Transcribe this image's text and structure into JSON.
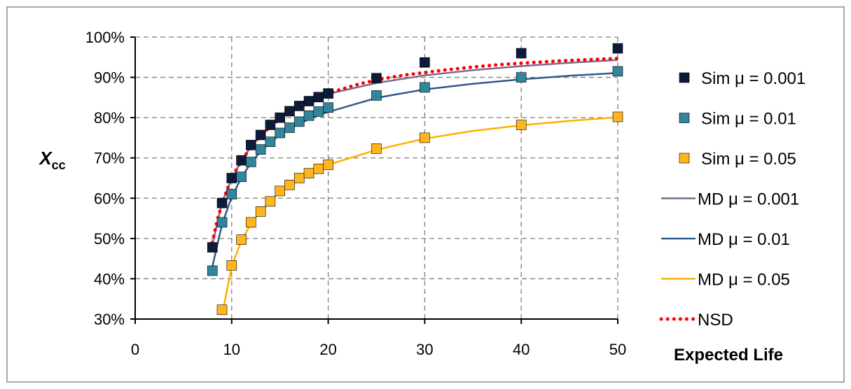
{
  "chart_data": {
    "type": "line",
    "title": "",
    "xlabel": "Expected Life",
    "ylabel": "X",
    "ylabel_subscript": "cc",
    "xlim": [
      0,
      50
    ],
    "ylim": [
      0.3,
      1.0
    ],
    "x_ticks": [
      0,
      10,
      20,
      30,
      40,
      50
    ],
    "y_ticks": [
      0.3,
      0.4,
      0.5,
      0.6,
      0.7,
      0.8,
      0.9,
      1.0
    ],
    "x_tick_labels": [
      "0",
      "10",
      "20",
      "30",
      "40",
      "50"
    ],
    "y_tick_labels": [
      "30%",
      "40%",
      "50%",
      "60%",
      "70%",
      "80%",
      "90%",
      "100%"
    ],
    "grid": true,
    "legend_position": "right",
    "series": [
      {
        "name": "Sim μ = 0.001",
        "kind": "marker",
        "color": "#0d1a3a",
        "x": [
          8,
          9,
          10,
          11,
          12,
          13,
          14,
          15,
          16,
          17,
          18,
          19,
          20,
          25,
          30,
          40,
          50
        ],
        "values": [
          0.478,
          0.588,
          0.65,
          0.694,
          0.732,
          0.757,
          0.782,
          0.8,
          0.816,
          0.829,
          0.841,
          0.851,
          0.86,
          0.898,
          0.937,
          0.96,
          0.972
        ]
      },
      {
        "name": "Sim μ = 0.01",
        "kind": "marker",
        "color": "#31859c",
        "x": [
          8,
          9,
          10,
          11,
          12,
          13,
          14,
          15,
          16,
          17,
          18,
          19,
          20,
          25,
          30,
          40,
          50
        ],
        "values": [
          0.42,
          0.54,
          0.61,
          0.653,
          0.69,
          0.721,
          0.74,
          0.762,
          0.775,
          0.79,
          0.805,
          0.815,
          0.825,
          0.855,
          0.875,
          0.9,
          0.915
        ]
      },
      {
        "name": "Sim μ = 0.05",
        "kind": "marker",
        "color": "#ffb51e",
        "x": [
          9,
          10,
          11,
          12,
          13,
          14,
          15,
          16,
          17,
          18,
          19,
          20,
          25,
          30,
          40,
          50
        ],
        "values": [
          0.323,
          0.433,
          0.497,
          0.54,
          0.567,
          0.592,
          0.618,
          0.633,
          0.65,
          0.662,
          0.673,
          0.683,
          0.723,
          0.75,
          0.782,
          0.802
        ]
      },
      {
        "name": "MD μ = 0.001",
        "kind": "line",
        "color": "#7a6a8e",
        "x": [
          8,
          9,
          10,
          11,
          12,
          13,
          14,
          15,
          16,
          17,
          18,
          19,
          20,
          25,
          30,
          35,
          40,
          45,
          50
        ],
        "values": [
          0.485,
          0.59,
          0.648,
          0.693,
          0.728,
          0.755,
          0.778,
          0.797,
          0.813,
          0.827,
          0.839,
          0.85,
          0.859,
          0.886,
          0.905,
          0.918,
          0.928,
          0.936,
          0.943
        ]
      },
      {
        "name": "MD μ = 0.01",
        "kind": "line",
        "color": "#2f5a8c",
        "x": [
          8,
          9,
          10,
          11,
          12,
          13,
          14,
          15,
          16,
          17,
          18,
          19,
          20,
          25,
          30,
          35,
          40,
          45,
          50
        ],
        "values": [
          0.43,
          0.535,
          0.603,
          0.651,
          0.688,
          0.716,
          0.739,
          0.757,
          0.772,
          0.785,
          0.796,
          0.806,
          0.814,
          0.849,
          0.87,
          0.884,
          0.895,
          0.904,
          0.911
        ]
      },
      {
        "name": "MD μ = 0.05",
        "kind": "line",
        "color": "#ffb000",
        "x": [
          9,
          10,
          11,
          12,
          13,
          14,
          15,
          16,
          17,
          18,
          19,
          20,
          25,
          30,
          35,
          40,
          45,
          50
        ],
        "values": [
          0.31,
          0.43,
          0.495,
          0.537,
          0.567,
          0.593,
          0.614,
          0.632,
          0.647,
          0.66,
          0.672,
          0.683,
          0.72,
          0.748,
          0.767,
          0.781,
          0.792,
          0.801
        ]
      },
      {
        "name": "NSD",
        "kind": "dotted",
        "color": "#ff0000",
        "x": [
          8,
          8.5,
          9,
          9.5,
          10,
          10.5,
          11,
          11.5,
          12,
          13,
          14,
          15,
          16,
          17,
          18,
          19,
          20,
          21,
          22,
          23,
          24,
          25,
          26,
          27,
          28,
          29,
          30,
          32,
          34,
          36,
          38,
          40,
          42,
          44,
          46,
          48,
          50
        ],
        "values": [
          0.49,
          0.545,
          0.585,
          0.62,
          0.65,
          0.672,
          0.692,
          0.71,
          0.728,
          0.755,
          0.778,
          0.797,
          0.813,
          0.827,
          0.84,
          0.851,
          0.86,
          0.868,
          0.875,
          0.882,
          0.888,
          0.893,
          0.898,
          0.902,
          0.906,
          0.909,
          0.912,
          0.918,
          0.923,
          0.928,
          0.932,
          0.935,
          0.938,
          0.941,
          0.943,
          0.945,
          0.947
        ]
      }
    ]
  }
}
